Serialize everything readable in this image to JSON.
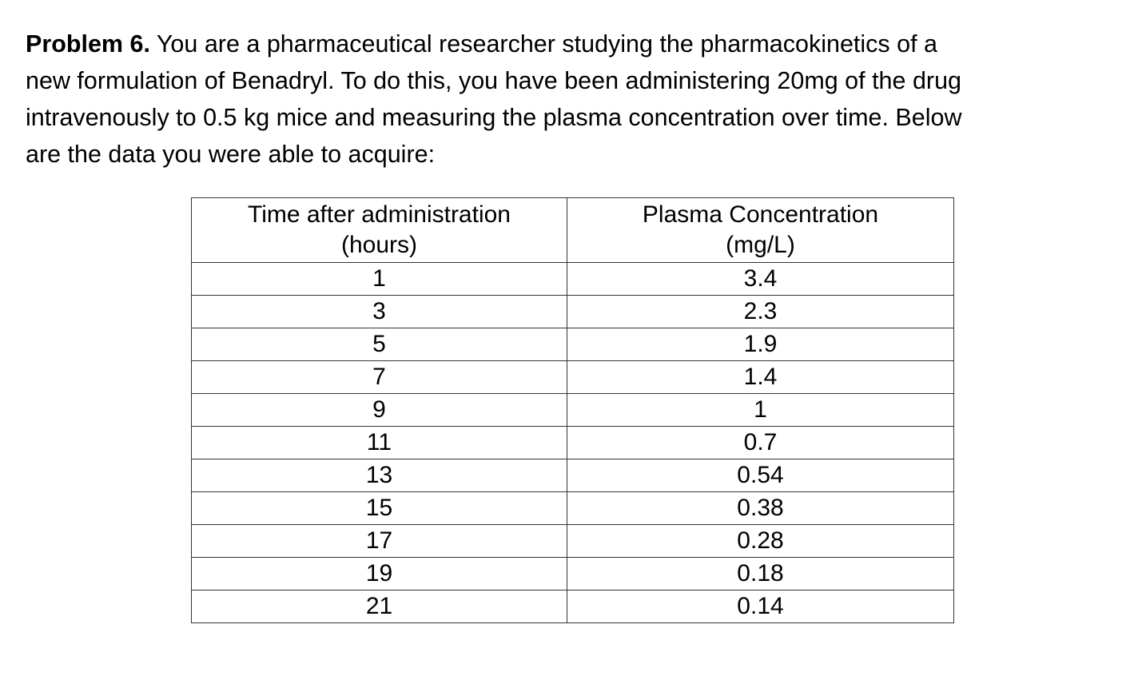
{
  "problem": {
    "label": "Problem 6.",
    "lines": [
      "You are a pharmaceutical researcher studying the pharmacokinetics of a",
      "new formulation of Benadryl. To do this, you have been administering 20mg of the drug",
      "intravenously to 0.5 kg mice and measuring the plasma concentration over time. Below",
      "are the data you were able to acquire:"
    ]
  },
  "table": {
    "header": [
      [
        "Time after administration",
        "(hours)"
      ],
      [
        "Plasma Concentration",
        "(mg/L)"
      ]
    ],
    "rows": [
      [
        1,
        3.4
      ],
      [
        3,
        2.3
      ],
      [
        5,
        1.9
      ],
      [
        7,
        1.4
      ],
      [
        9,
        1
      ],
      [
        11,
        0.7
      ],
      [
        13,
        0.54
      ],
      [
        15,
        0.38
      ],
      [
        17,
        0.28
      ],
      [
        19,
        0.18
      ],
      [
        21,
        0.14
      ]
    ]
  }
}
